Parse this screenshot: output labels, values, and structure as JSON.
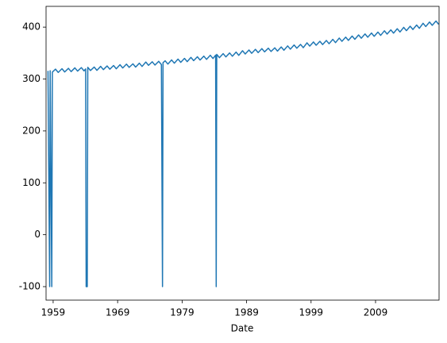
{
  "chart_data": {
    "type": "line",
    "xlabel": "Date",
    "xlim": [
      1957.9,
      2018.85
    ],
    "xticks": [
      1959,
      1969,
      1979,
      1989,
      1999,
      2009
    ],
    "ylim": [
      -126,
      440
    ],
    "yticks": [
      -100,
      0,
      100,
      200,
      300,
      400
    ],
    "x": [
      1958.2,
      1958.46,
      1958.54,
      1958.79,
      1958.88,
      1959.37,
      1959.79,
      1960.37,
      1960.79,
      1961.37,
      1961.79,
      1962.37,
      1962.79,
      1963.37,
      1963.79,
      1964.04,
      1964.12,
      1964.2,
      1964.29,
      1964.37,
      1964.79,
      1965.37,
      1965.79,
      1966.37,
      1966.79,
      1967.37,
      1967.79,
      1968.37,
      1968.79,
      1969.37,
      1969.79,
      1970.37,
      1970.79,
      1971.37,
      1971.79,
      1972.37,
      1972.79,
      1973.37,
      1973.79,
      1974.37,
      1974.79,
      1975.37,
      1975.79,
      1975.96,
      1976.04,
      1976.37,
      1976.79,
      1977.37,
      1977.79,
      1978.37,
      1978.79,
      1979.37,
      1979.79,
      1980.37,
      1980.79,
      1981.37,
      1981.79,
      1982.37,
      1982.79,
      1983.37,
      1983.79,
      1984.2,
      1984.29,
      1984.37,
      1984.79,
      1985.37,
      1985.79,
      1986.37,
      1986.79,
      1987.37,
      1987.79,
      1988.37,
      1988.79,
      1989.37,
      1989.79,
      1990.37,
      1990.79,
      1991.37,
      1991.79,
      1992.37,
      1992.79,
      1993.37,
      1993.79,
      1994.37,
      1994.79,
      1995.37,
      1995.79,
      1996.37,
      1996.79,
      1997.37,
      1997.79,
      1998.37,
      1998.79,
      1999.37,
      1999.79,
      2000.37,
      2000.79,
      2001.37,
      2001.79,
      2002.37,
      2002.79,
      2003.37,
      2003.79,
      2004.37,
      2004.79,
      2005.37,
      2005.79,
      2006.37,
      2006.79,
      2007.37,
      2007.79,
      2008.37,
      2008.79,
      2009.37,
      2009.79,
      2010.37,
      2010.79,
      2011.37,
      2011.79,
      2012.37,
      2012.79,
      2013.37,
      2013.79,
      2014.37,
      2014.79,
      2015.37,
      2015.79,
      2016.37,
      2016.79,
      2017.37,
      2017.79,
      2018.37,
      2018.79
    ],
    "series": [
      {
        "color": "#1f77b4",
        "values": [
          315.7,
          -99.99,
          315.9,
          -99.99,
          313.3,
          319.0,
          312.7,
          319.9,
          313.6,
          320.6,
          314.3,
          321.5,
          315.2,
          322.0,
          315.7,
          319.4,
          -99.99,
          -99.99,
          -99.99,
          322.6,
          316.3,
          323.0,
          316.7,
          324.4,
          318.1,
          325.2,
          318.9,
          326.0,
          319.7,
          327.6,
          321.3,
          328.7,
          322.4,
          329.3,
          323.0,
          330.5,
          324.2,
          332.7,
          326.4,
          333.2,
          326.9,
          334.1,
          327.8,
          -99.99,
          331.5,
          335.1,
          328.8,
          336.8,
          330.5,
          338.4,
          332.1,
          339.8,
          333.5,
          341.7,
          335.4,
          342.9,
          336.6,
          344.1,
          337.8,
          345.8,
          339.5,
          346.0,
          -99.99,
          347.4,
          341.1,
          348.9,
          342.6,
          350.2,
          343.9,
          351.9,
          345.6,
          354.5,
          348.2,
          355.9,
          349.6,
          357.2,
          350.9,
          358.6,
          352.3,
          359.4,
          353.1,
          360.1,
          353.8,
          361.8,
          355.5,
          363.8,
          357.5,
          365.6,
          359.3,
          366.7,
          360.4,
          369.7,
          363.4,
          371.4,
          365.1,
          372.7,
          366.4,
          374.3,
          368.0,
          376.4,
          370.1,
          378.9,
          372.6,
          380.7,
          374.4,
          382.8,
          376.5,
          384.9,
          378.6,
          386.8,
          380.5,
          388.6,
          382.3,
          390.4,
          384.1,
          392.9,
          386.6,
          394.7,
          388.4,
          396.9,
          390.6,
          399.5,
          393.2,
          401.7,
          395.4,
          404.0,
          397.7,
          407.4,
          401.1,
          409.8,
          403.5,
          411.7,
          405.4
        ]
      }
    ]
  }
}
